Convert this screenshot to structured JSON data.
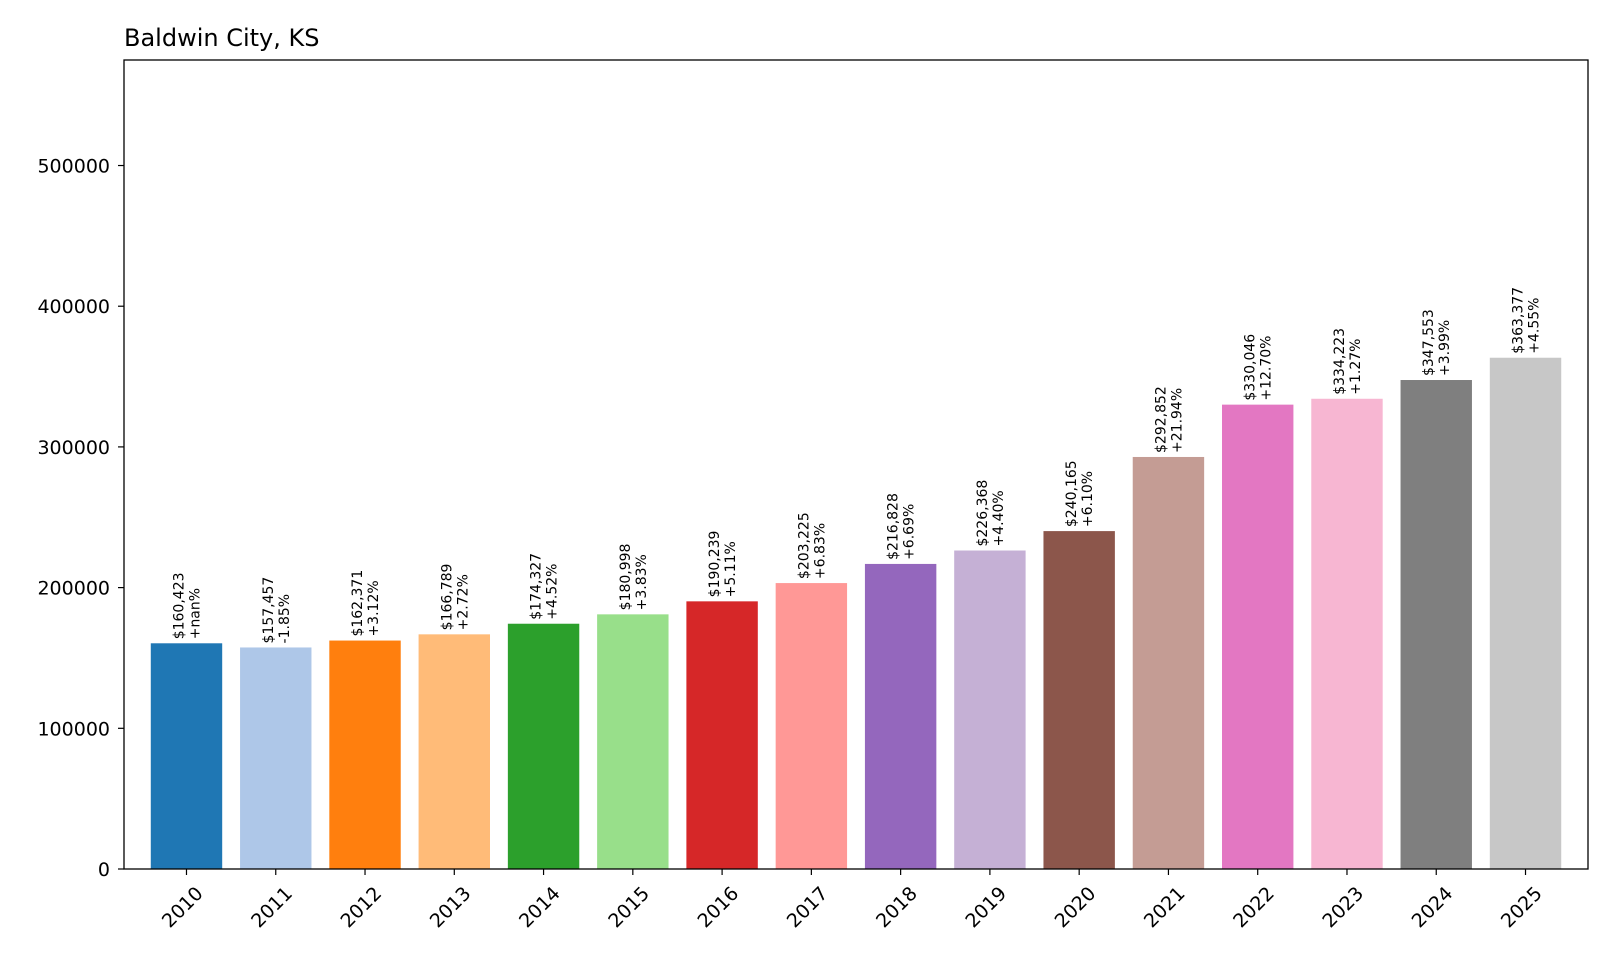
{
  "chart_data": {
    "type": "bar",
    "title": "Baldwin City, KS",
    "xlabel": "",
    "ylabel": "",
    "ylim": [
      0,
      575000
    ],
    "yticks": [
      0,
      100000,
      200000,
      300000,
      400000,
      500000
    ],
    "ytick_labels": [
      "0",
      "100000",
      "200000",
      "300000",
      "400000",
      "500000"
    ],
    "grid": false,
    "categories": [
      "2010",
      "2011",
      "2012",
      "2013",
      "2014",
      "2015",
      "2016",
      "2017",
      "2018",
      "2019",
      "2020",
      "2021",
      "2022",
      "2023",
      "2024",
      "2025"
    ],
    "values": [
      160423,
      157457,
      162371,
      166789,
      174327,
      180998,
      190239,
      203225,
      216828,
      226368,
      240165,
      292852,
      330046,
      334223,
      347553,
      363377
    ],
    "value_labels": [
      "$160,423",
      "$157,457",
      "$162,371",
      "$166,789",
      "$174,327",
      "$180,998",
      "$190,239",
      "$203,225",
      "$216,828",
      "$226,368",
      "$240,165",
      "$292,852",
      "$330,046",
      "$334,223",
      "$347,553",
      "$363,377"
    ],
    "change_labels": [
      "+nan%",
      "-1.85%",
      "+3.12%",
      "+2.72%",
      "+4.52%",
      "+3.83%",
      "+5.11%",
      "+6.83%",
      "+6.69%",
      "+4.40%",
      "+6.10%",
      "+21.94%",
      "+12.70%",
      "+1.27%",
      "+3.99%",
      "+4.55%"
    ],
    "colors": [
      "#1f77b4",
      "#aec7e8",
      "#ff7f0e",
      "#ffbb78",
      "#2ca02c",
      "#98df8a",
      "#d62728",
      "#ff9896",
      "#9467bd",
      "#c5b0d5",
      "#8c564b",
      "#c49c94",
      "#e377c2",
      "#f7b6d2",
      "#7f7f7f",
      "#c7c7c7"
    ]
  }
}
